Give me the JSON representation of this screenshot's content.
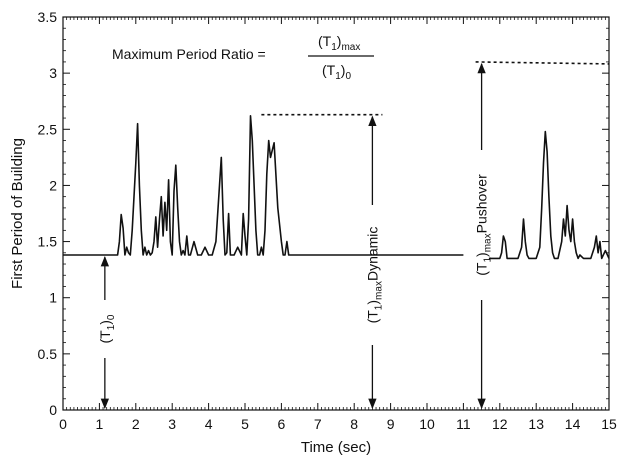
{
  "chart_data": {
    "type": "line",
    "xlabel": "Time (sec)",
    "ylabel": "First Period of Building",
    "xlim": [
      0,
      15
    ],
    "ylim": [
      0,
      3.5
    ],
    "xticks": [
      "0",
      "1",
      "2",
      "3",
      "4",
      "5",
      "6",
      "7",
      "8",
      "9",
      "10",
      "11",
      "12",
      "13",
      "14",
      "15"
    ],
    "yticks": [
      "0",
      "0.5",
      "1",
      "1.5",
      "2",
      "2.5",
      "3",
      "3.5"
    ],
    "grid": false,
    "legend": "none",
    "series": [
      {
        "x": [
          0,
          1.5,
          1.55,
          1.6,
          1.65,
          1.7,
          1.75,
          1.8,
          1.85,
          1.9,
          1.95,
          2.0,
          2.05,
          2.1,
          2.15,
          2.2,
          2.25,
          2.3,
          2.35,
          2.4,
          2.45,
          2.5,
          2.55,
          2.6,
          2.65,
          2.7,
          2.75,
          2.8,
          2.85,
          2.9,
          2.95,
          3.0,
          3.05,
          3.1,
          3.15,
          3.2,
          3.25,
          3.3,
          3.35,
          3.4,
          3.45,
          3.5,
          3.6,
          3.7,
          3.8,
          3.9,
          4.0,
          4.1,
          4.2,
          4.3,
          4.35,
          4.4,
          4.45,
          4.5,
          4.55,
          4.6,
          4.7,
          4.8,
          4.9,
          4.95,
          5.0,
          5.05,
          5.1,
          5.15,
          5.2,
          5.25,
          5.3,
          5.35,
          5.4,
          5.45,
          5.5,
          5.55,
          5.6,
          5.65,
          5.7,
          5.8,
          5.9,
          6.0,
          6.05,
          6.1,
          6.15,
          6.2,
          6.25,
          6.3,
          6.35,
          6.4,
          6.5,
          6.6,
          6.7,
          6.75,
          6.8,
          6.85,
          6.9,
          7.0,
          7.5,
          8.0,
          8.5,
          9.0,
          9.5,
          10.0,
          10.5,
          11.0
        ],
        "y": [
          1.38,
          1.38,
          1.5,
          1.74,
          1.62,
          1.38,
          1.45,
          1.4,
          1.38,
          1.6,
          1.9,
          2.2,
          2.55,
          2.0,
          1.6,
          1.38,
          1.45,
          1.38,
          1.42,
          1.38,
          1.4,
          1.5,
          1.72,
          1.45,
          1.7,
          1.9,
          1.55,
          1.85,
          1.6,
          2.05,
          1.5,
          1.38,
          1.95,
          2.18,
          1.8,
          1.5,
          1.38,
          1.42,
          1.38,
          1.55,
          1.38,
          1.38,
          1.5,
          1.38,
          1.38,
          1.45,
          1.38,
          1.38,
          1.5,
          2.0,
          2.25,
          1.7,
          1.38,
          1.4,
          1.75,
          1.38,
          1.38,
          1.45,
          1.38,
          1.75,
          1.55,
          1.38,
          1.7,
          2.62,
          2.4,
          2.0,
          1.6,
          1.38,
          1.38,
          1.45,
          1.38,
          1.6,
          2.1,
          2.4,
          2.25,
          2.38,
          1.8,
          1.5,
          1.38,
          1.38,
          1.5,
          1.38,
          1.38,
          1.38,
          1.38,
          1.38,
          1.38,
          1.38,
          1.38,
          1.38,
          1.38,
          1.38,
          1.38,
          1.38,
          1.38,
          1.38,
          1.38,
          1.38,
          1.38,
          1.38,
          1.38,
          1.38
        ]
      },
      {
        "x": [
          11.7,
          12.0,
          12.05,
          12.1,
          12.15,
          12.2,
          12.3,
          12.5,
          12.6,
          12.65,
          12.7,
          12.75,
          12.8,
          13.0,
          13.1,
          13.15,
          13.2,
          13.25,
          13.3,
          13.35,
          13.4,
          13.45,
          13.5,
          13.6,
          13.7,
          13.75,
          13.8,
          13.85,
          13.9,
          13.95,
          14.0,
          14.05,
          14.1,
          14.15,
          14.2,
          14.3,
          14.5,
          14.6,
          14.65,
          14.7,
          14.75,
          14.8,
          14.9,
          15.0
        ],
        "y": [
          1.35,
          1.35,
          1.4,
          1.55,
          1.5,
          1.35,
          1.35,
          1.35,
          1.45,
          1.7,
          1.5,
          1.38,
          1.35,
          1.35,
          1.45,
          1.8,
          2.2,
          2.48,
          2.3,
          1.9,
          1.55,
          1.4,
          1.35,
          1.35,
          1.5,
          1.7,
          1.55,
          1.82,
          1.6,
          1.5,
          1.7,
          1.5,
          1.4,
          1.35,
          1.38,
          1.35,
          1.35,
          1.45,
          1.55,
          1.4,
          1.5,
          1.35,
          1.42,
          1.35
        ]
      }
    ],
    "annotations": {
      "ratio_label": "Maximum Period Ratio =",
      "numerator": "(T",
      "numerator_sub": "1",
      "numerator_close": ")",
      "numerator_subscript": "max",
      "denominator": "(T",
      "denominator_sub": "1",
      "denominator_close": ")",
      "denominator_subscript": "0",
      "t0_label_main": "(T",
      "t0_label_sub": "1",
      "t0_label_close": ")",
      "t0_label_subscript": "0",
      "dynamic_label_main": "(T",
      "dynamic_label_sub": "1",
      "dynamic_label_close": ")",
      "dynamic_label_subscript": "max",
      "dynamic_label_word": "Dynamic",
      "pushover_label_main": "(T",
      "pushover_label_sub": "1",
      "pushover_label_close": ")",
      "pushover_label_subscript": "max",
      "pushover_label_word": "Pushover",
      "t0_x": 1.15,
      "t0_y": 1.38,
      "dynamic_x": 8.5,
      "dynamic_y": 2.63,
      "dynamic_line_from_x": 5.45,
      "pushover_x": 11.5,
      "pushover_y": 3.1,
      "pushover_line_to_x": 15.0
    }
  }
}
